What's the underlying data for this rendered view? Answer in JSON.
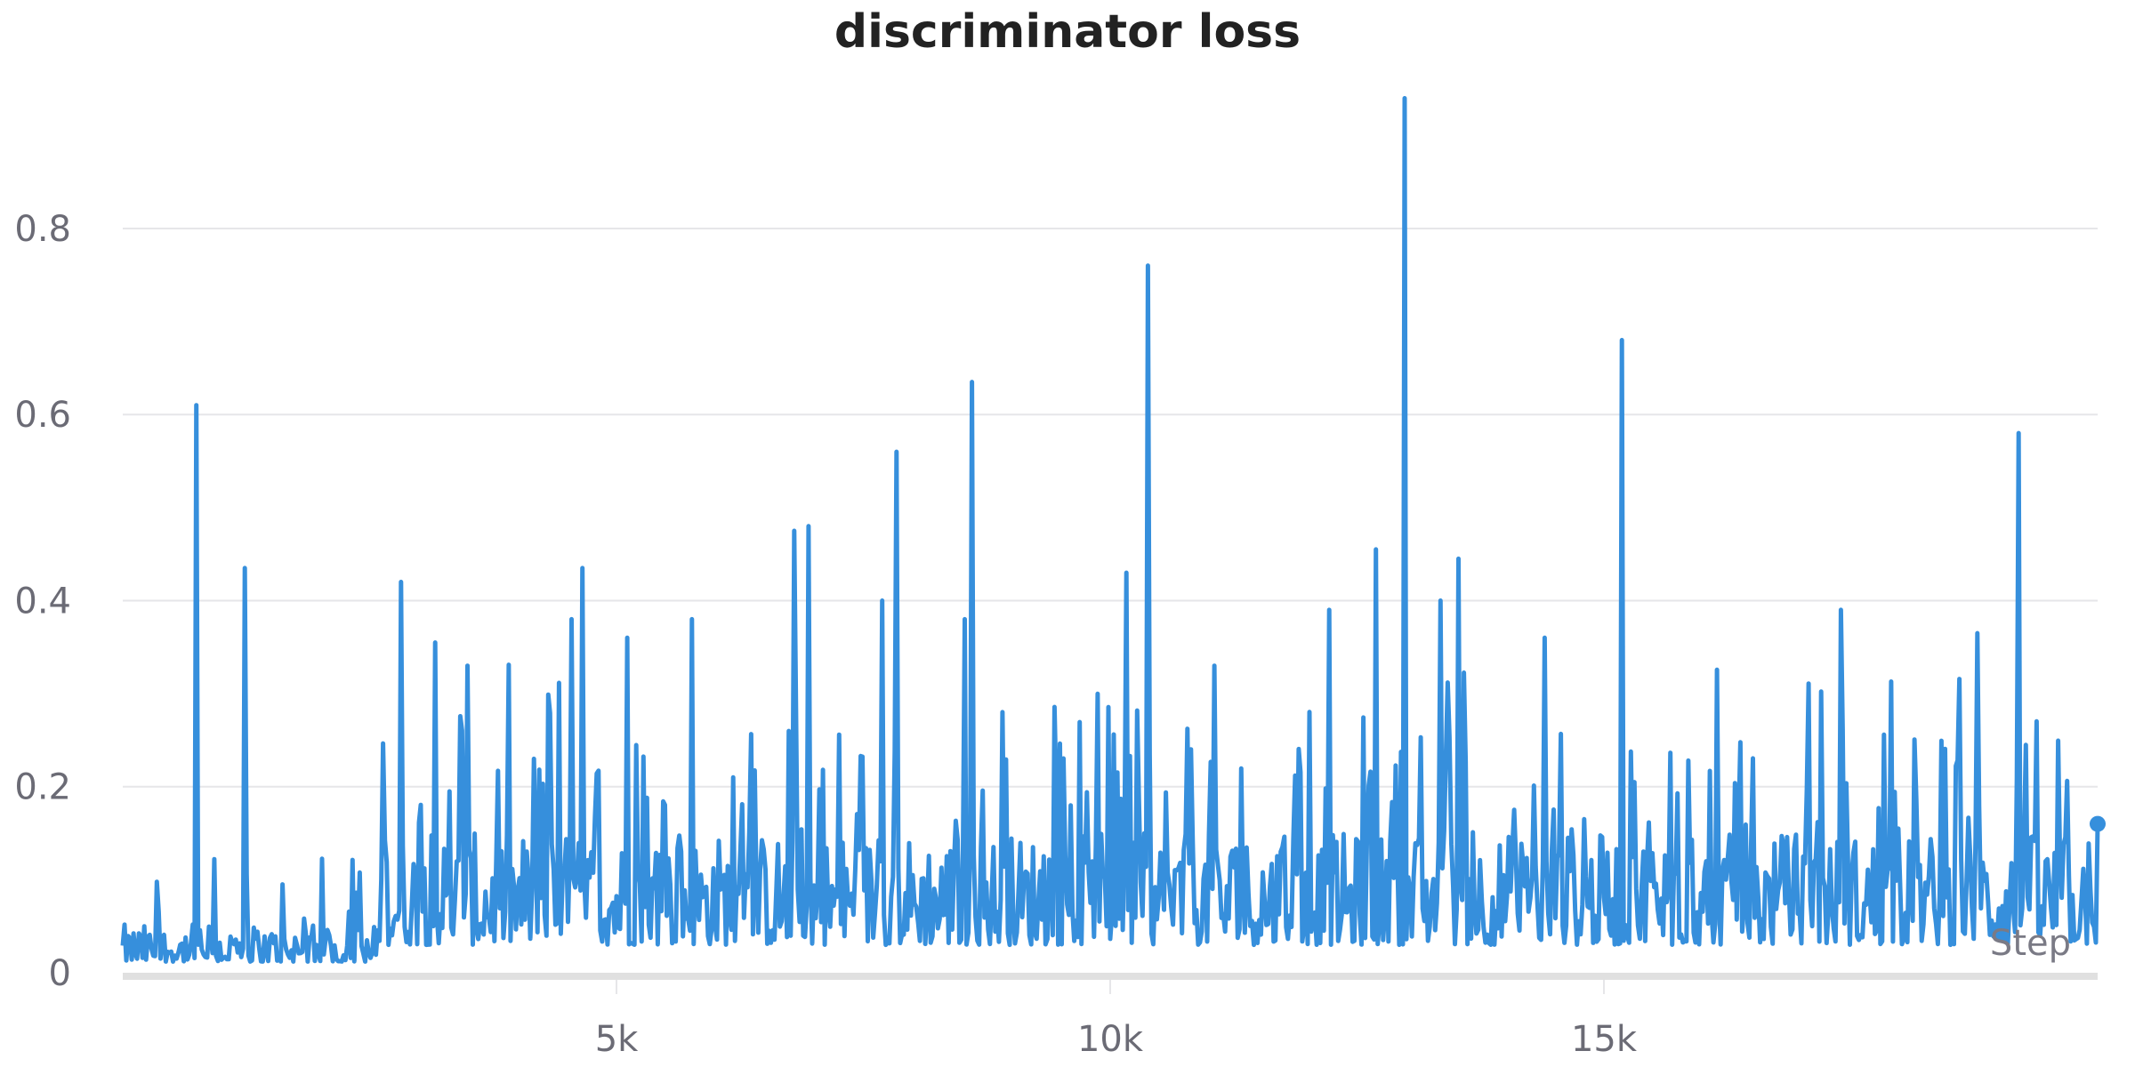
{
  "chart_data": {
    "type": "line",
    "title": "discriminator loss",
    "xlabel": "Step",
    "ylabel": "",
    "xlim": [
      0,
      20000
    ],
    "ylim": [
      0,
      0.95
    ],
    "y_ticks": [
      0,
      0.2,
      0.4,
      0.6,
      0.8
    ],
    "y_tick_labels": [
      "0",
      "0.2",
      "0.4",
      "0.6",
      "0.8"
    ],
    "x_ticks": [
      5000,
      10000,
      15000
    ],
    "x_tick_labels": [
      "5k",
      "10k",
      "15k"
    ],
    "grid": true,
    "series": [
      {
        "name": "discriminator loss",
        "color": "#368fdc",
        "peaks": [
          {
            "x": 750,
            "y": 0.61
          },
          {
            "x": 1230,
            "y": 0.435
          },
          {
            "x": 2820,
            "y": 0.42
          },
          {
            "x": 3160,
            "y": 0.355
          },
          {
            "x": 3500,
            "y": 0.33
          },
          {
            "x": 4540,
            "y": 0.38
          },
          {
            "x": 4660,
            "y": 0.435
          },
          {
            "x": 5110,
            "y": 0.36
          },
          {
            "x": 5770,
            "y": 0.38
          },
          {
            "x": 6800,
            "y": 0.475
          },
          {
            "x": 6950,
            "y": 0.48
          },
          {
            "x": 7700,
            "y": 0.4
          },
          {
            "x": 7830,
            "y": 0.56
          },
          {
            "x": 8520,
            "y": 0.38
          },
          {
            "x": 8600,
            "y": 0.635
          },
          {
            "x": 10170,
            "y": 0.43
          },
          {
            "x": 10390,
            "y": 0.76
          },
          {
            "x": 11050,
            "y": 0.33
          },
          {
            "x": 12220,
            "y": 0.39
          },
          {
            "x": 12700,
            "y": 0.455
          },
          {
            "x": 12990,
            "y": 0.94
          },
          {
            "x": 13350,
            "y": 0.4
          },
          {
            "x": 13520,
            "y": 0.445
          },
          {
            "x": 14400,
            "y": 0.36
          },
          {
            "x": 15180,
            "y": 0.68
          },
          {
            "x": 17400,
            "y": 0.39
          },
          {
            "x": 18780,
            "y": 0.365
          },
          {
            "x": 19200,
            "y": 0.58
          }
        ],
        "last_point": {
          "x": 20000,
          "y": 0.16
        }
      }
    ]
  }
}
